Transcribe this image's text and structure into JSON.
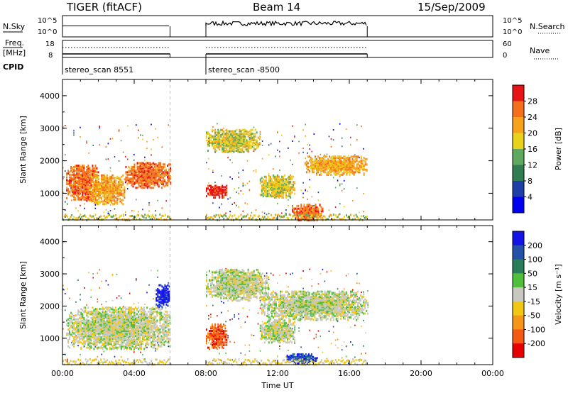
{
  "header": {
    "radar": "TIGER (fitACF)",
    "beam": "Beam 14",
    "date": "15/Sep/2009"
  },
  "top_strips": {
    "nsky_label": "N.Sky",
    "nsky_ticks": [
      "10^5",
      "10^0"
    ],
    "nsearch_label": "N.Search",
    "nsearch_ticks": [
      "10^5",
      "10^0"
    ],
    "freq_label": "Freq.",
    "freq_unit": "[MHz]",
    "freq_ticks": [
      "18",
      "8"
    ],
    "nave_label": "Nave",
    "nave_ticks": [
      "60",
      "0"
    ],
    "cpid_label": "CPID",
    "cpid_segments": [
      {
        "label": "stereo_scan 8551",
        "start_h": 0,
        "end_h": 6
      },
      {
        "label": "stereo_scan -8500",
        "start_h": 8,
        "end_h": 17
      }
    ]
  },
  "colors": {
    "power": [
      "#0000ee",
      "#1f3fa8",
      "#2f7d50",
      "#5fa85f",
      "#e8d21c",
      "#f7a21b",
      "#f5701b",
      "#e61414"
    ],
    "velocity": [
      "#1414e6",
      "#2452a8",
      "#2a7d5a",
      "#4fbf3c",
      "#c8c8c0",
      "#f0c814",
      "#f5961b",
      "#f55a14",
      "#e60000"
    ]
  },
  "chart_data": [
    {
      "type": "heatmap",
      "name": "Power",
      "xlabel": "Time UT",
      "ylabel": "Slant Range [km]",
      "xlim": [
        0,
        24
      ],
      "ylim": [
        180,
        4500
      ],
      "x_ticks": [
        "00:00",
        "04:00",
        "08:00",
        "12:00",
        "16:00",
        "20:00",
        "00:00"
      ],
      "y_ticks": [
        "1000",
        "2000",
        "3000",
        "4000"
      ],
      "colorbar_label": "Power [dB]",
      "colorbar_ticks": [
        "4",
        "8",
        "12",
        "16",
        "20",
        "24",
        "28"
      ],
      "blobs": [
        {
          "t0": 0.2,
          "t1": 2.0,
          "r0": 800,
          "r1": 1900,
          "level": 6
        },
        {
          "t0": 1.5,
          "t1": 3.5,
          "r0": 700,
          "r1": 1600,
          "level": 5
        },
        {
          "t0": 3.5,
          "t1": 6.0,
          "r0": 1200,
          "r1": 2000,
          "level": 6
        },
        {
          "t0": 8.0,
          "t1": 9.2,
          "r0": 900,
          "r1": 1300,
          "level": 7
        },
        {
          "t0": 8.0,
          "t1": 11.0,
          "r0": 2300,
          "r1": 3000,
          "level": 4
        },
        {
          "t0": 11.0,
          "t1": 13.0,
          "r0": 900,
          "r1": 1600,
          "level": 4
        },
        {
          "t0": 13.5,
          "t1": 17.0,
          "r0": 1600,
          "r1": 2200,
          "level": 5
        },
        {
          "t0": 12.8,
          "t1": 14.5,
          "r0": 200,
          "r1": 700,
          "level": 6
        }
      ]
    },
    {
      "type": "heatmap",
      "name": "Velocity",
      "xlabel": "Time UT",
      "ylabel": "Slant Range [km]",
      "xlim": [
        0,
        24
      ],
      "ylim": [
        180,
        4500
      ],
      "x_ticks": [
        "00:00",
        "04:00",
        "08:00",
        "12:00",
        "16:00",
        "20:00",
        "00:00"
      ],
      "y_ticks": [
        "1000",
        "2000",
        "3000",
        "4000"
      ],
      "colorbar_label": "Velocity [m s⁻¹]",
      "colorbar_ticks": [
        "200",
        "100",
        "50",
        "15",
        "-15",
        "-50",
        "-100",
        "-200"
      ],
      "blobs": [
        {
          "t0": 0.2,
          "t1": 6.0,
          "r0": 700,
          "r1": 2000,
          "level": 4
        },
        {
          "t0": 5.2,
          "t1": 6.0,
          "r0": 2000,
          "r1": 2700,
          "level": 0
        },
        {
          "t0": 8.0,
          "t1": 9.2,
          "r0": 700,
          "r1": 1500,
          "level": 7
        },
        {
          "t0": 8.0,
          "t1": 11.5,
          "r0": 2200,
          "r1": 3200,
          "level": 4
        },
        {
          "t0": 11.0,
          "t1": 17.0,
          "r0": 1600,
          "r1": 2500,
          "level": 4
        },
        {
          "t0": 12.5,
          "t1": 14.2,
          "r0": 250,
          "r1": 550,
          "level": 1
        },
        {
          "t0": 11.0,
          "t1": 13.0,
          "r0": 900,
          "r1": 1600,
          "level": 4
        }
      ]
    }
  ]
}
